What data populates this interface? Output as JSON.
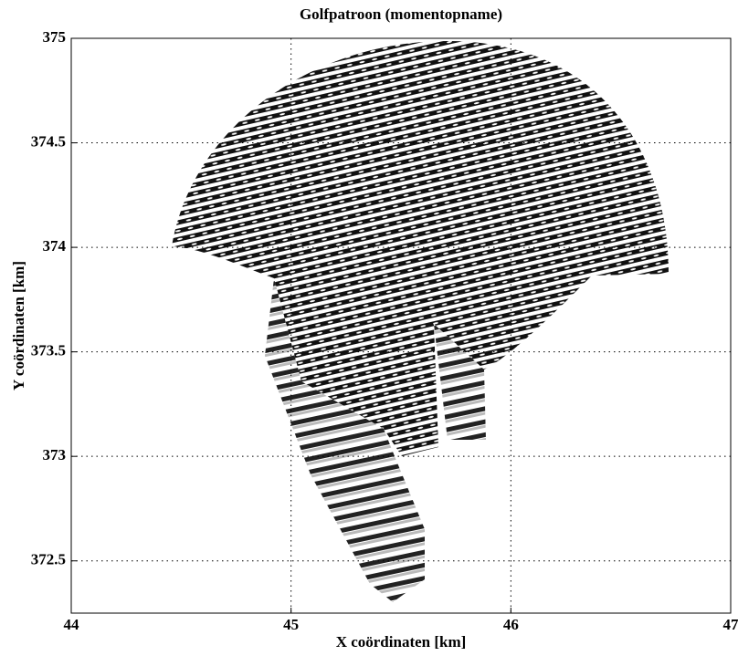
{
  "chart_data": {
    "type": "field",
    "title": "Golfpatroon (momentopname)",
    "x_label": "X coördinaten [km]",
    "y_label": "Y coördinaten [km]",
    "xlim": [
      44,
      47
    ],
    "xticks": [
      44,
      45,
      46,
      47
    ],
    "ylim": [
      372.25,
      375
    ],
    "yticks": [
      372.5,
      373,
      373.5,
      374,
      374.5,
      375
    ],
    "grid": true
  }
}
